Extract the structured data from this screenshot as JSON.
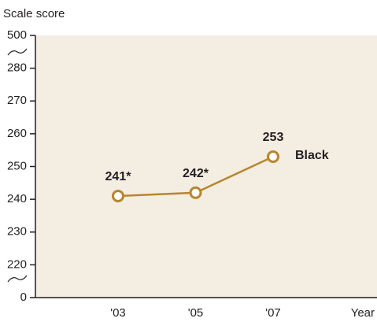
{
  "chart_data": {
    "type": "line",
    "y_label": "Scale score",
    "x_label": "Year",
    "categories": [
      "'03",
      "'05",
      "'07"
    ],
    "series": [
      {
        "name": "Black",
        "color": "#b8862e",
        "values": [
          241,
          242,
          253
        ],
        "value_labels": [
          "241*",
          "242*",
          "253"
        ]
      }
    ],
    "ylim": [
      0,
      500
    ],
    "yticks": [
      0,
      220,
      230,
      240,
      250,
      260,
      270,
      280,
      500
    ]
  }
}
